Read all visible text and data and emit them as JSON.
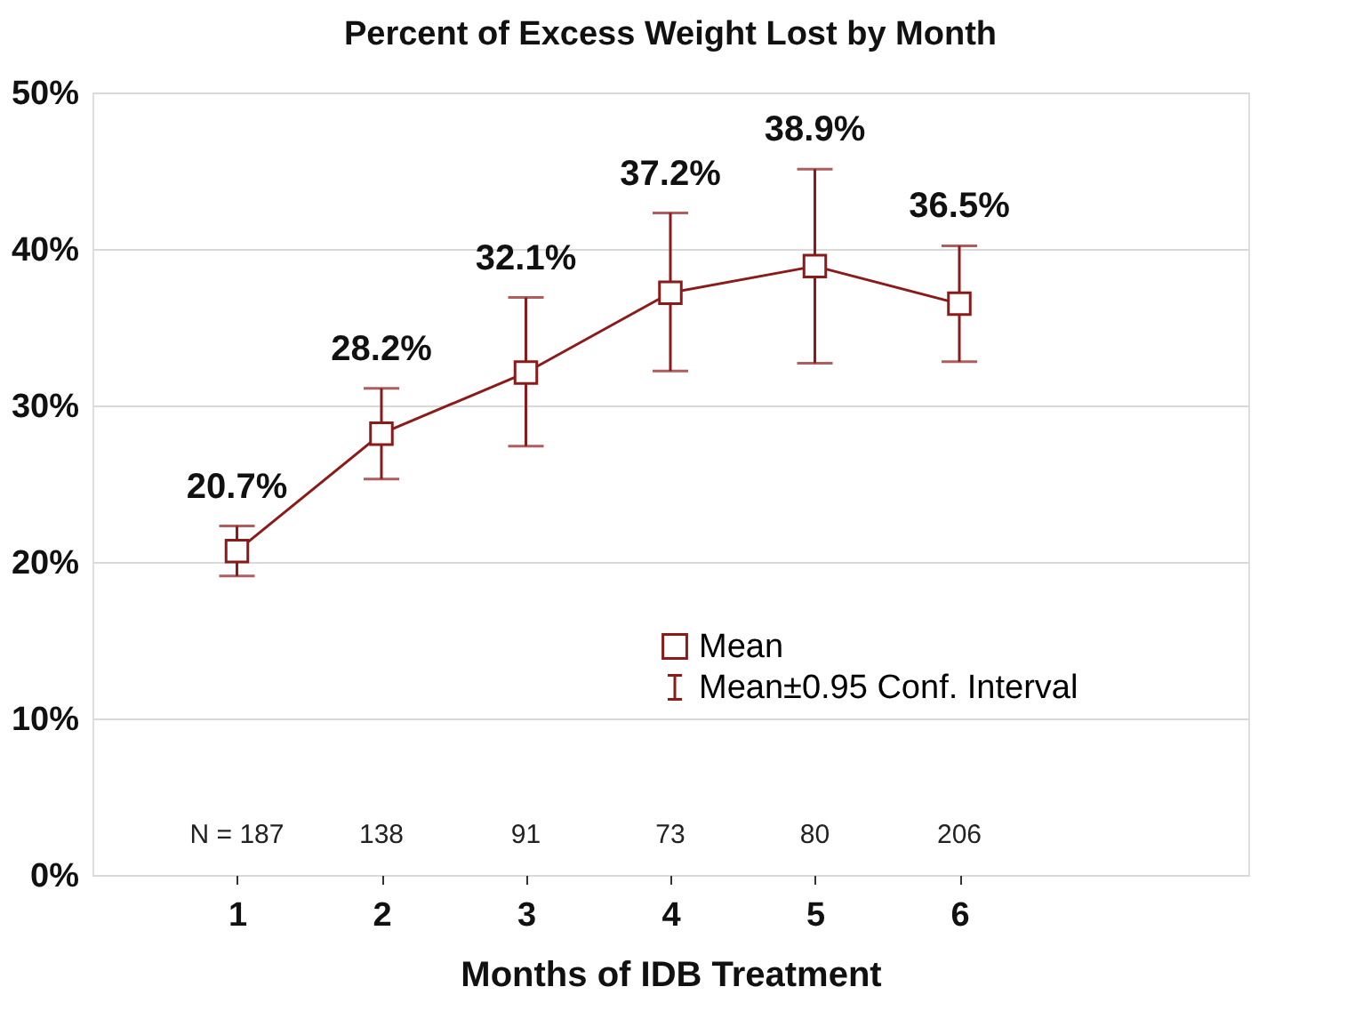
{
  "chart_data": {
    "type": "line",
    "title": "Percent of Excess Weight Lost by Month",
    "xlabel": "Months of IDB Treatment",
    "x": [
      1,
      2,
      3,
      4,
      5,
      6
    ],
    "series": [
      {
        "name": "Mean",
        "color": "#8b1a1a",
        "values": [
          20.7,
          28.2,
          32.1,
          37.2,
          38.9,
          36.5
        ],
        "errors": [
          [
            19.1,
            22.3
          ],
          [
            25.3,
            31.1
          ],
          [
            27.4,
            36.9
          ],
          [
            32.2,
            42.3
          ],
          [
            32.7,
            45.1
          ],
          [
            32.8,
            40.2
          ]
        ],
        "value_labels": [
          "20.7%",
          "28.2%",
          "32.1%",
          "37.2%",
          "38.9%",
          "36.5%"
        ]
      }
    ],
    "marker": "square",
    "line_style": "solid",
    "xlim": [
      0,
      8
    ],
    "xticks": [
      1,
      2,
      3,
      4,
      5,
      6
    ],
    "ylim": [
      0,
      50
    ],
    "yticks": [
      {
        "value": 0,
        "label": "0%"
      },
      {
        "value": 10,
        "label": "10%"
      },
      {
        "value": 20,
        "label": "20%"
      },
      {
        "value": 30,
        "label": "30%"
      },
      {
        "value": 40,
        "label": "40%"
      },
      {
        "value": 50,
        "label": "50%"
      }
    ],
    "grid": "y",
    "legend": "bottom right",
    "annotations": [
      "Mean±0.95 Conf. Interval",
      "N = 187",
      "138",
      "91",
      "73",
      "80",
      "206"
    ]
  }
}
